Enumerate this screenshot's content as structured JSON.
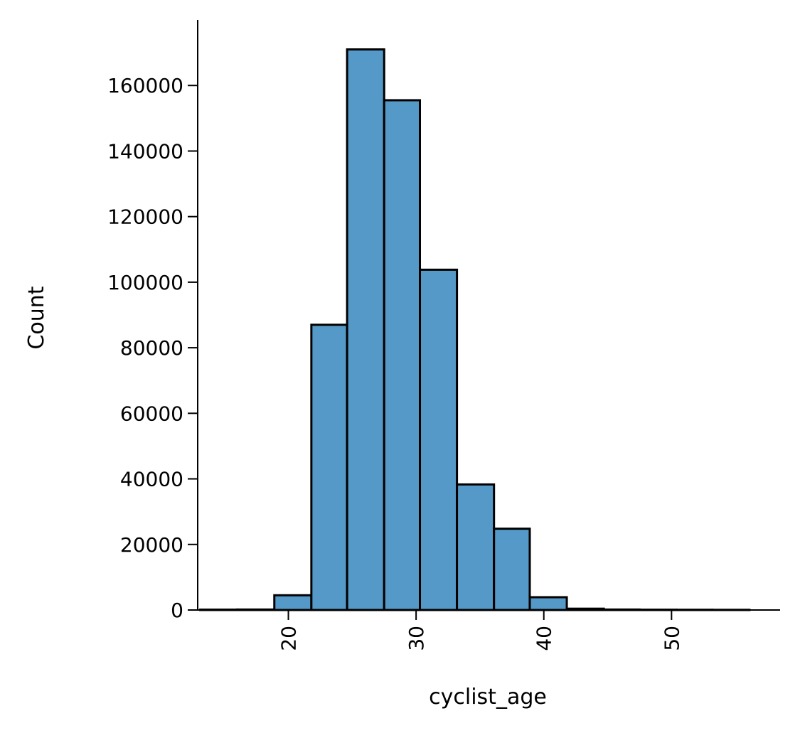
{
  "chart_data": {
    "type": "bar",
    "title": "",
    "xlabel": "cyclist_age",
    "ylabel": "Count",
    "xlim": [
      12.9,
      58.5
    ],
    "ylim": [
      0,
      180000
    ],
    "xticks": [
      20,
      30,
      40,
      50
    ],
    "yticks": [
      0,
      20000,
      40000,
      60000,
      80000,
      100000,
      120000,
      140000,
      160000
    ],
    "grid": false,
    "bar_color": "#5499c7",
    "edge_color": "#000000",
    "bins": [
      {
        "x0": 13.1,
        "x1": 16.0,
        "count": 120
      },
      {
        "x0": 16.0,
        "x1": 18.9,
        "count": 150
      },
      {
        "x0": 18.9,
        "x1": 21.8,
        "count": 4500
      },
      {
        "x0": 21.8,
        "x1": 24.6,
        "count": 87000
      },
      {
        "x0": 24.6,
        "x1": 27.5,
        "count": 171000
      },
      {
        "x0": 27.5,
        "x1": 30.3,
        "count": 155500
      },
      {
        "x0": 30.3,
        "x1": 33.2,
        "count": 103800
      },
      {
        "x0": 33.2,
        "x1": 36.1,
        "count": 38300
      },
      {
        "x0": 36.1,
        "x1": 38.9,
        "count": 24800
      },
      {
        "x0": 38.9,
        "x1": 41.8,
        "count": 3900
      },
      {
        "x0": 41.8,
        "x1": 44.7,
        "count": 400
      },
      {
        "x0": 44.7,
        "x1": 47.5,
        "count": 150
      },
      {
        "x0": 47.5,
        "x1": 50.4,
        "count": 100
      },
      {
        "x0": 50.4,
        "x1": 53.2,
        "count": 80
      },
      {
        "x0": 53.2,
        "x1": 56.1,
        "count": 60
      }
    ]
  }
}
